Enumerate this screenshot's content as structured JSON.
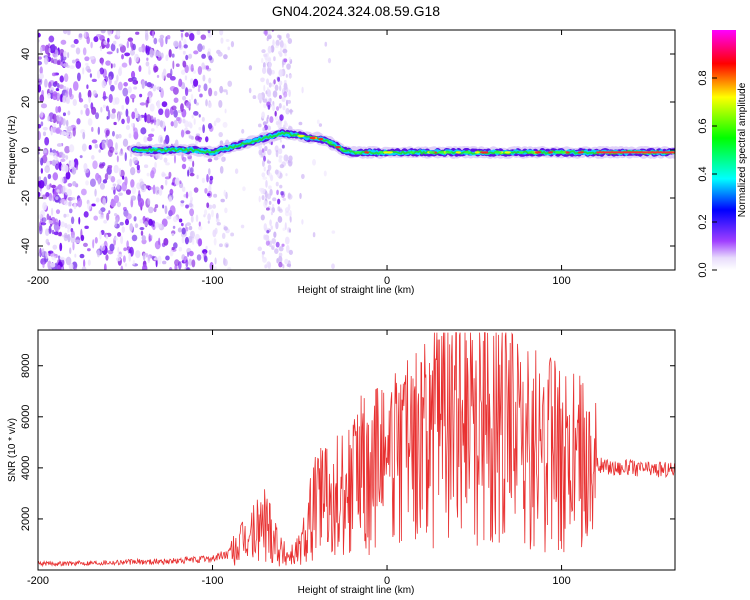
{
  "title": "GN04.2024.324.08.59.G18",
  "colors": {
    "snr_line": "#e83030",
    "axis": "#000000",
    "colormap": [
      "#ffffff",
      "#d8c4f8",
      "#9b30ff",
      "#5a00e6",
      "#0000ff",
      "#00ffff",
      "#00ff00",
      "#ffff00",
      "#ff0000",
      "#ff00ff"
    ]
  },
  "chart_data": [
    {
      "type": "heatmap",
      "title": "",
      "xlabel": "Height of straight line (km)",
      "ylabel": "Frequency (Hz)",
      "xlim": [
        -200,
        165
      ],
      "ylim": [
        -50,
        50
      ],
      "x_ticks": [
        "-200",
        "-100",
        "0",
        "100"
      ],
      "x_tick_values": [
        -200,
        -100,
        0,
        100
      ],
      "y_ticks": [
        "-40",
        "-20",
        "0",
        "20",
        "40"
      ],
      "y_tick_values": [
        -40,
        -20,
        0,
        20,
        40
      ],
      "signal_ridge": {
        "x": [
          -145,
          -120,
          -110,
          -100,
          -90,
          -80,
          -70,
          -60,
          -50,
          -45,
          -40,
          -35,
          -30,
          -25,
          -20,
          -10,
          0,
          20,
          50,
          80,
          100,
          130,
          165
        ],
        "frequency": [
          0,
          0,
          0,
          -1,
          1,
          3,
          5,
          7,
          6,
          5,
          5,
          4,
          2,
          0,
          -1,
          -1,
          -1,
          -1,
          -1,
          -1,
          -1,
          -1,
          -1
        ]
      },
      "colorbar": {
        "label": "Normalized spectral amplitude",
        "range": [
          0,
          1
        ],
        "ticks": [
          "0.0",
          "0.2",
          "0.4",
          "0.6",
          "0.8"
        ],
        "tick_values": [
          0,
          0.2,
          0.4,
          0.6,
          0.8
        ]
      }
    },
    {
      "type": "line",
      "title": "",
      "xlabel": "Height of straight line (km)",
      "ylabel": "SNR (10 * v/v)",
      "xlim": [
        -200,
        165
      ],
      "ylim": [
        0,
        9400
      ],
      "x_ticks": [
        "-200",
        "-100",
        "0",
        "100"
      ],
      "x_tick_values": [
        -200,
        -100,
        0,
        100
      ],
      "y_ticks": [
        "2000",
        "4000",
        "6000",
        "8000"
      ],
      "y_tick_values": [
        2000,
        4000,
        6000,
        8000
      ],
      "series": [
        {
          "x": [
            -200,
            -180,
            -160,
            -140,
            -120,
            -100,
            -90,
            -80,
            -75,
            -70,
            -65,
            -60,
            -55,
            -50,
            -45,
            -40,
            -35,
            -30,
            -25,
            -20,
            -15,
            -10,
            -5,
            0,
            5,
            10,
            15,
            20,
            25,
            30,
            35,
            40,
            45,
            50,
            55,
            60,
            65,
            70,
            75,
            80,
            85,
            90,
            95,
            100,
            105,
            110,
            115,
            120,
            130,
            140,
            150,
            165
          ],
          "y": [
            250,
            260,
            300,
            320,
            350,
            450,
            650,
            1200,
            1500,
            1900,
            1500,
            650,
            600,
            800,
            1800,
            2900,
            3100,
            3300,
            3200,
            3400,
            3700,
            3900,
            4000,
            4100,
            4300,
            4500,
            4600,
            4800,
            5200,
            5900,
            6400,
            6500,
            6300,
            5800,
            5600,
            5500,
            5300,
            5100,
            4900,
            4800,
            4700,
            4600,
            4500,
            4450,
            4400,
            4300,
            4200,
            4100,
            4000,
            4000,
            3950,
            3950
          ]
        }
      ]
    }
  ]
}
